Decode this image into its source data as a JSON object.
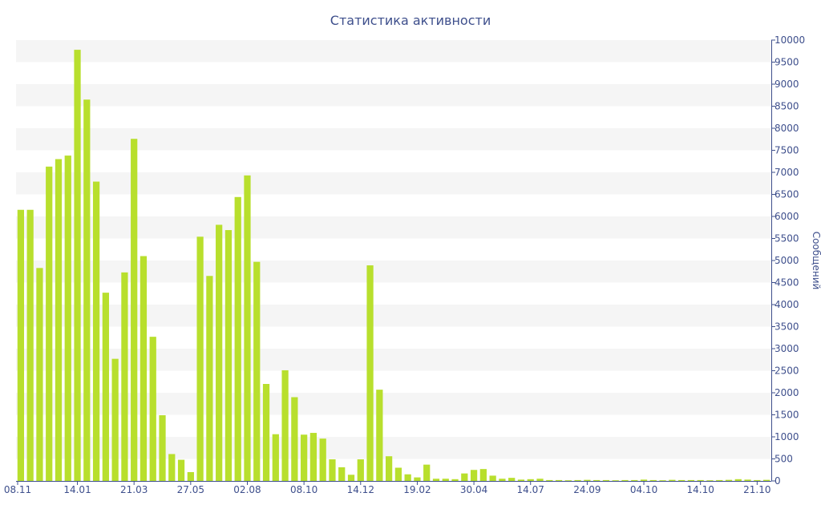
{
  "colors": {
    "bar": "#b8df2d",
    "band": "#f5f5f5",
    "axis": "#3e4f8c",
    "text": "#3e4f8c"
  },
  "chart_data": {
    "type": "bar",
    "title": "Статистика активности",
    "xlabel": "",
    "ylabel": "Сообщений",
    "ylim": [
      0,
      10000
    ],
    "ytick_step": 500,
    "y_axis_side": "right",
    "grid": "alternating horizontal bands",
    "x_tick_labels": [
      "08.11",
      "14.01",
      "21.03",
      "27.05",
      "02.08",
      "08.10",
      "14.12",
      "19.02",
      "30.04",
      "14.07",
      "24.09",
      "04.10",
      "14.10",
      "21.10"
    ],
    "x_tick_positions": [
      0,
      6,
      12,
      18,
      24,
      30,
      36,
      42,
      48,
      54,
      60,
      66,
      72,
      78
    ],
    "values": [
      6150,
      6150,
      4830,
      7130,
      7300,
      7380,
      9780,
      8650,
      6790,
      4270,
      2770,
      4730,
      7760,
      5100,
      3270,
      1490,
      610,
      480,
      200,
      5540,
      4650,
      5810,
      5690,
      6440,
      6930,
      4970,
      2200,
      1060,
      2510,
      1900,
      1050,
      1090,
      960,
      490,
      310,
      140,
      490,
      4890,
      2070,
      560,
      300,
      150,
      80,
      370,
      50,
      50,
      40,
      170,
      250,
      270,
      120,
      50,
      70,
      30,
      40,
      50,
      20,
      20,
      15,
      20,
      25,
      20,
      20,
      15,
      20,
      20,
      30,
      20,
      15,
      25,
      20,
      20,
      20,
      15,
      20,
      25,
      40,
      30,
      20,
      25
    ]
  }
}
